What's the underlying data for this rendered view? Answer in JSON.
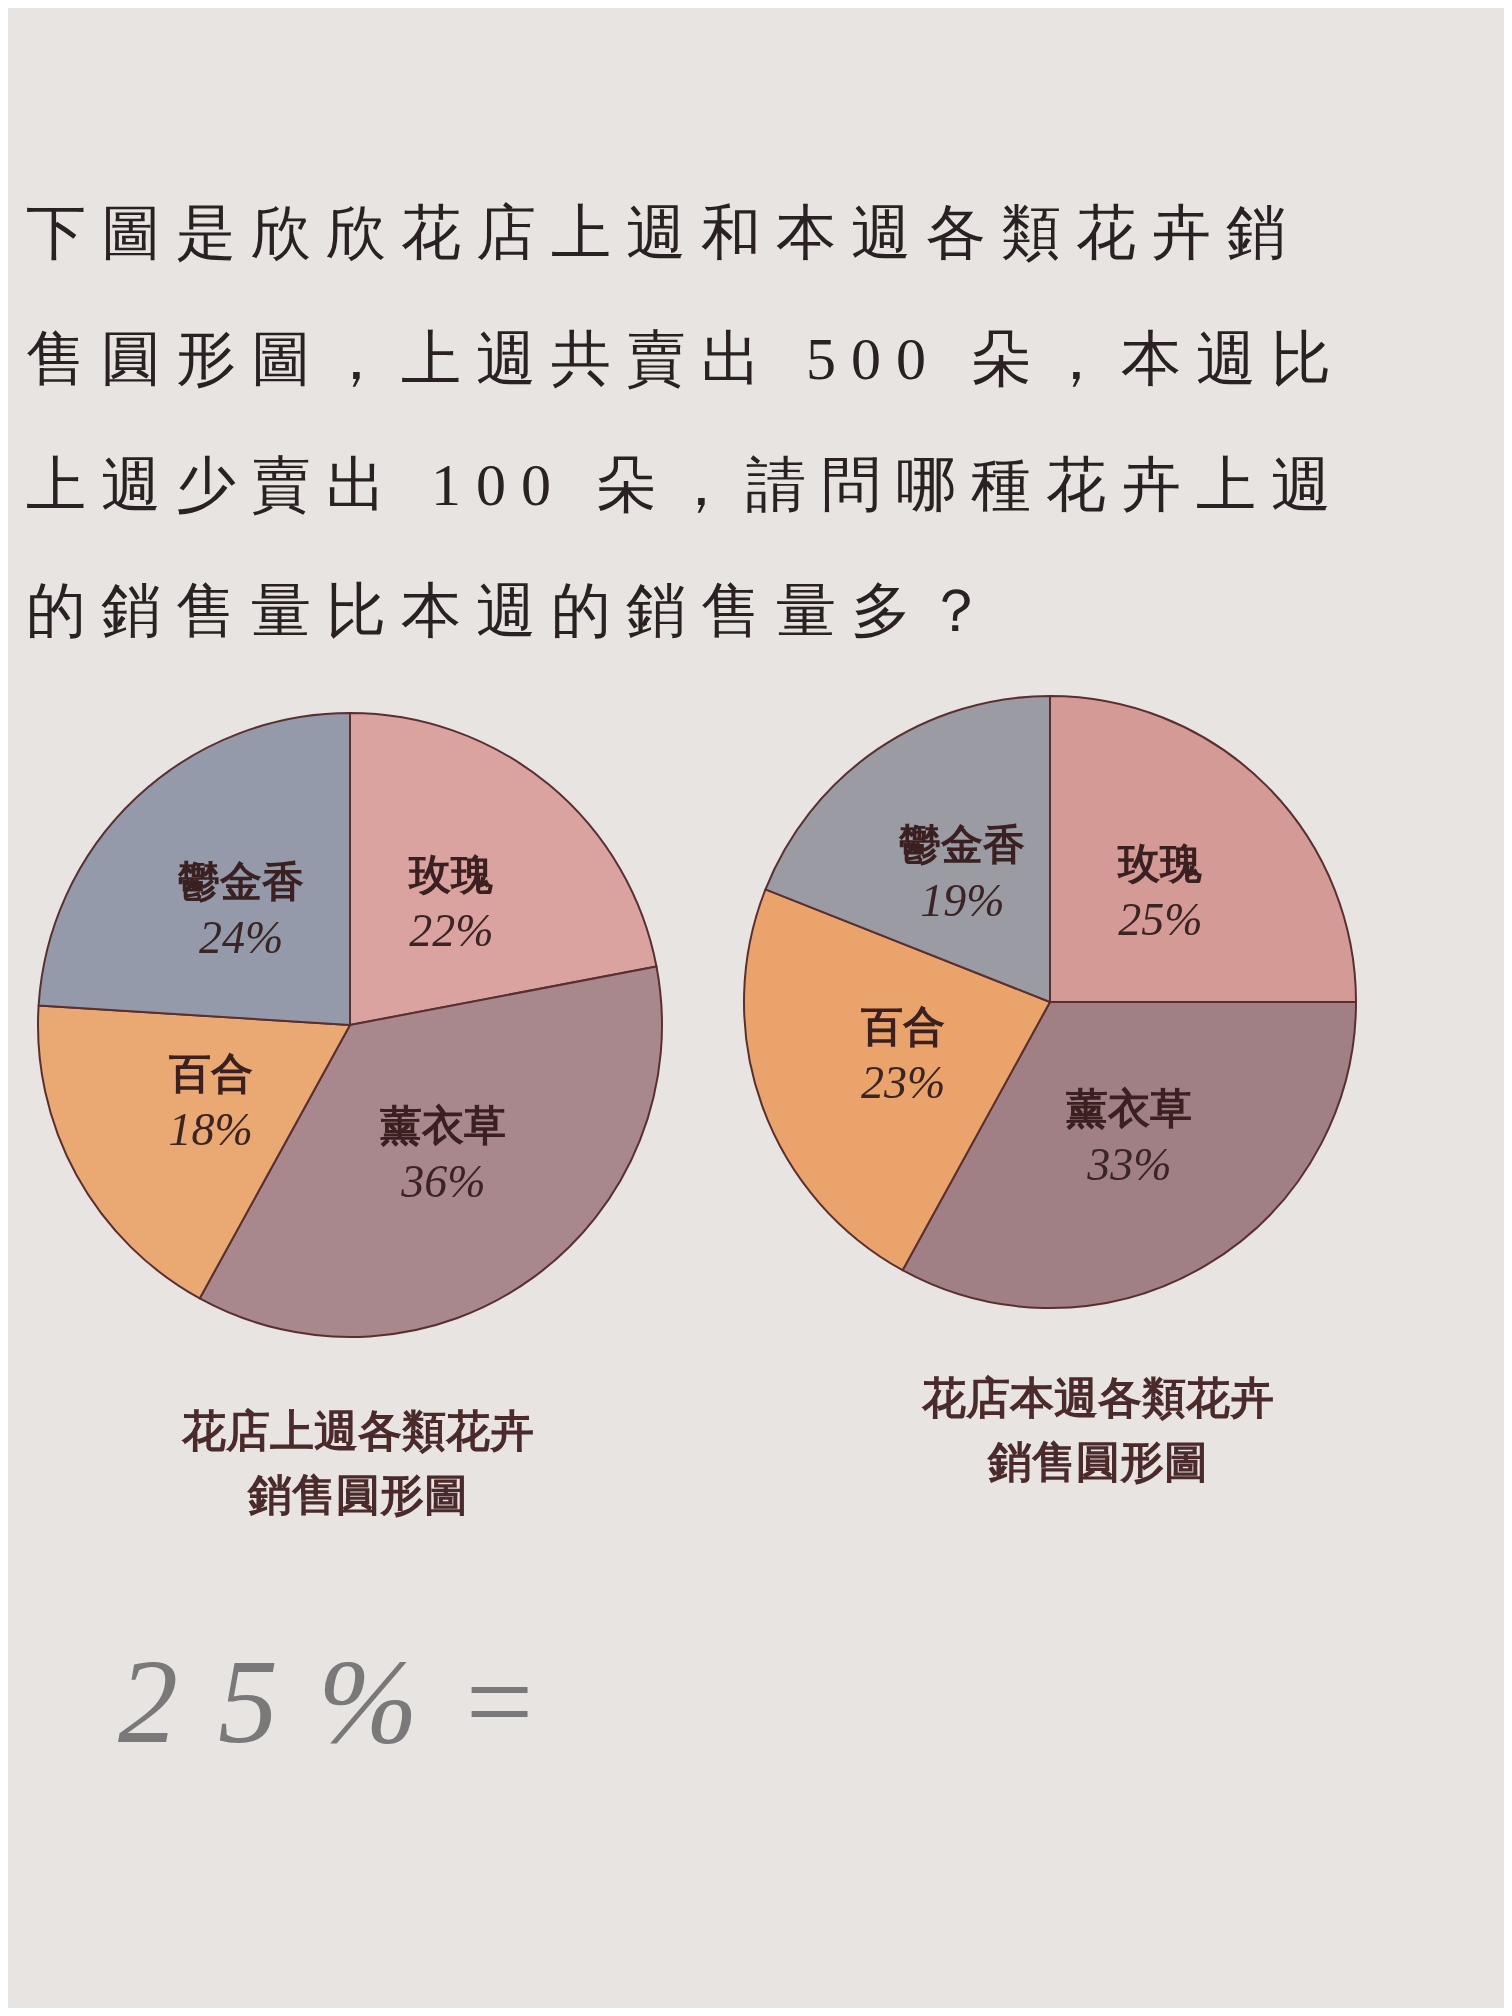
{
  "chart_data": [
    {
      "type": "pie",
      "title": "花店上週各類花卉銷售圓形圖",
      "categories": [
        "玫瑰",
        "薰衣草",
        "百合",
        "鬱金香"
      ],
      "values": [
        22,
        36,
        18,
        24
      ],
      "value_labels": [
        "22%",
        "36%",
        "18%",
        "24%"
      ],
      "colors": [
        "#dba3a0",
        "#a8888c",
        "#eaa873",
        "#949aaa"
      ],
      "annotations": [
        "下圖是欣欣花店上週和本週各類花卉銷售圓形圖，上週共賣出 500 朵，本週比上週少賣出 100 朵，請問哪種花卉上週的銷售量比本週的銷售量多？",
        "25%="
      ]
    },
    {
      "type": "pie",
      "title": "花店本週各類花卉銷售圓形圖",
      "categories": [
        "玫瑰",
        "薰衣草",
        "百合",
        "鬱金香"
      ],
      "values": [
        25,
        33,
        23,
        19
      ],
      "value_labels": [
        "25%",
        "33%",
        "23%",
        "19%"
      ],
      "colors": [
        "#d49a96",
        "#a08084",
        "#e9a36b",
        "#9a9ba3"
      ]
    }
  ]
}
